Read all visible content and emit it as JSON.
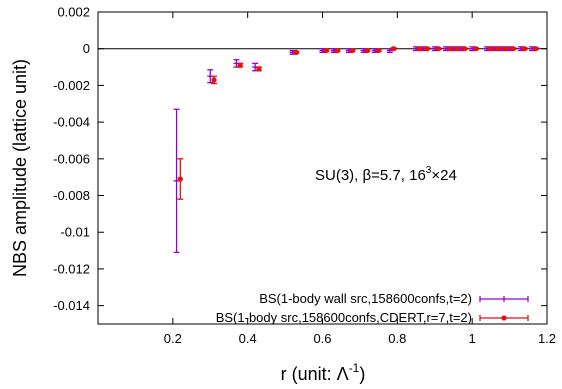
{
  "chart_data": {
    "type": "scatter",
    "xlabel": "r (unit: Λ",
    "xlabel_sup": "-1",
    "xlabel_close": ")",
    "ylabel": "NBS amplitude (lattice unit)",
    "xlim": [
      0,
      1.2
    ],
    "ylim": [
      -0.015,
      0.002
    ],
    "x_ticks": [
      0.2,
      0.4,
      0.6,
      0.8,
      1.0,
      1.2
    ],
    "x_tick_labels": [
      "0.2",
      "0.4",
      "0.6",
      "0.8",
      "1",
      "1.2"
    ],
    "y_ticks": [
      0.002,
      0,
      -0.002,
      -0.004,
      -0.006,
      -0.008,
      -0.01,
      -0.012,
      -0.014
    ],
    "y_tick_labels": [
      "0.002",
      "0",
      "-0.002",
      "-0.004",
      "-0.006",
      "-0.008",
      "-0.01",
      "-0.012",
      "-0.014"
    ],
    "grid": false,
    "zero_line": true,
    "annotation": {
      "text_prefix": "SU(3), ",
      "beta": "β",
      "text_mid": "=5.7, 16",
      "sup": "3",
      "times": "×",
      "text_end": "24"
    },
    "legend_position": "bottom-right",
    "series": [
      {
        "name": "BS(1-body wall src,158600confs,t=2)",
        "color": "#9400d3",
        "marker": "plus",
        "points": [
          {
            "x": 0.21,
            "y": -0.0072,
            "err": 0.0039
          },
          {
            "x": 0.3,
            "y": -0.0015,
            "err": 0.00035
          },
          {
            "x": 0.37,
            "y": -0.0008,
            "err": 0.0002
          },
          {
            "x": 0.42,
            "y": -0.001,
            "err": 0.0002
          },
          {
            "x": 0.52,
            "y": -0.0002,
            "err": 0.0001
          },
          {
            "x": 0.6,
            "y": -0.0001,
            "err": 0.0001
          },
          {
            "x": 0.63,
            "y": -0.0001,
            "err": 0.0001
          },
          {
            "x": 0.67,
            "y": -0.0001,
            "err": 0.0001
          },
          {
            "x": 0.71,
            "y": -0.0001,
            "err": 0.0001
          },
          {
            "x": 0.74,
            "y": -0.0001,
            "err": 0.0001
          },
          {
            "x": 0.78,
            "y": -0.0001,
            "err": 0.0001
          },
          {
            "x": 0.85,
            "y": 0.0,
            "err": 0.0001
          },
          {
            "x": 0.87,
            "y": 0.0,
            "err": 0.0001
          },
          {
            "x": 0.9,
            "y": 0.0,
            "err": 0.0001
          },
          {
            "x": 0.93,
            "y": 0.0,
            "err": 0.0001
          },
          {
            "x": 0.95,
            "y": 0.0,
            "err": 0.0001
          },
          {
            "x": 0.97,
            "y": 0.0,
            "err": 0.0001
          },
          {
            "x": 1.0,
            "y": 0.0,
            "err": 0.0001
          },
          {
            "x": 1.04,
            "y": 0.0,
            "err": 0.0001
          },
          {
            "x": 1.06,
            "y": 0.0,
            "err": 0.0001
          },
          {
            "x": 1.08,
            "y": 0.0,
            "err": 0.0001
          },
          {
            "x": 1.1,
            "y": 0.0,
            "err": 0.0001
          },
          {
            "x": 1.13,
            "y": 0.0,
            "err": 0.0001
          },
          {
            "x": 1.16,
            "y": 0.0,
            "err": 0.0001
          }
        ]
      },
      {
        "name": "BS(1-body src,158600confs,CDERT,r=7,t=2)",
        "color": "#e8120c",
        "marker": "dot",
        "points": [
          {
            "x": 0.22,
            "y": -0.0071,
            "err": 0.0011
          },
          {
            "x": 0.31,
            "y": -0.0017,
            "err": 0.0002
          },
          {
            "x": 0.38,
            "y": -0.0009,
            "err": 0.0001
          },
          {
            "x": 0.43,
            "y": -0.0011,
            "err": 0.0001
          },
          {
            "x": 0.53,
            "y": -0.0002,
            "err": 5e-05
          },
          {
            "x": 0.61,
            "y": -0.0001,
            "err": 5e-05
          },
          {
            "x": 0.64,
            "y": -0.0001,
            "err": 5e-05
          },
          {
            "x": 0.68,
            "y": -0.0001,
            "err": 5e-05
          },
          {
            "x": 0.72,
            "y": -0.0001,
            "err": 5e-05
          },
          {
            "x": 0.75,
            "y": -0.0001,
            "err": 5e-05
          },
          {
            "x": 0.79,
            "y": 0.0,
            "err": 5e-05
          },
          {
            "x": 0.86,
            "y": 0.0,
            "err": 5e-05
          },
          {
            "x": 0.88,
            "y": 0.0,
            "err": 5e-05
          },
          {
            "x": 0.91,
            "y": 0.0,
            "err": 5e-05
          },
          {
            "x": 0.94,
            "y": 0.0,
            "err": 5e-05
          },
          {
            "x": 0.96,
            "y": 0.0,
            "err": 5e-05
          },
          {
            "x": 0.98,
            "y": 0.0,
            "err": 5e-05
          },
          {
            "x": 1.01,
            "y": 0.0,
            "err": 5e-05
          },
          {
            "x": 1.05,
            "y": 0.0,
            "err": 5e-05
          },
          {
            "x": 1.07,
            "y": 0.0,
            "err": 5e-05
          },
          {
            "x": 1.09,
            "y": 0.0,
            "err": 5e-05
          },
          {
            "x": 1.11,
            "y": 0.0,
            "err": 5e-05
          },
          {
            "x": 1.14,
            "y": 0.0,
            "err": 5e-05
          },
          {
            "x": 1.17,
            "y": 0.0,
            "err": 5e-05
          }
        ]
      }
    ]
  }
}
